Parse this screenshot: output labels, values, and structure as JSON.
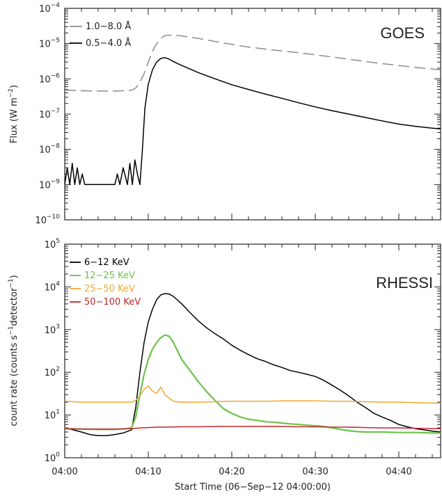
{
  "chart_data": [
    {
      "type": "line",
      "panel_label": "GOES",
      "ylabel": "Flux (W m",
      "ylabel_exp": "−2",
      "ylabel_end": ")",
      "yscale": "log",
      "ylim": [
        1e-10,
        0.0001
      ],
      "y_tick_labels": [
        {
          "base": "10",
          "exp": "−4",
          "value": 0.0001
        },
        {
          "base": "10",
          "exp": "−5",
          "value": 1e-05
        },
        {
          "base": "10",
          "exp": "−6",
          "value": 1e-06
        },
        {
          "base": "10",
          "exp": "−7",
          "value": 1e-07
        },
        {
          "base": "10",
          "exp": "−8",
          "value": 1e-08
        },
        {
          "base": "10",
          "exp": "−9",
          "value": 1e-09
        },
        {
          "base": "10",
          "exp": "−10",
          "value": 1e-10
        }
      ],
      "x_unit": "minutes after 04:00",
      "xlim": [
        0,
        45
      ],
      "legend_position": "top-left",
      "series": [
        {
          "name": "1.0−8.0 Å",
          "color": "#8c8c8c",
          "dash": true,
          "x": [
            0,
            2,
            4,
            6,
            8,
            8.5,
            9,
            9.5,
            10,
            10.5,
            11,
            11.5,
            12,
            13,
            14,
            16,
            18,
            20,
            22,
            24,
            26,
            28,
            30,
            32,
            34,
            36,
            38,
            40,
            42,
            44,
            45
          ],
          "y": [
            4.8e-07,
            4.6e-07,
            4.5e-07,
            4.5e-07,
            4.7e-07,
            5.5e-07,
            8e-07,
            1.4e-06,
            3e-06,
            6e-06,
            1e-05,
            1.4e-05,
            1.7e-05,
            1.75e-05,
            1.65e-05,
            1.4e-05,
            1.15e-05,
            9.5e-06,
            8e-06,
            7e-06,
            6.2e-06,
            5.5e-06,
            4.8e-06,
            4.2e-06,
            3.6e-06,
            3.1e-06,
            2.7e-06,
            2.4e-06,
            2.1e-06,
            1.9e-06,
            1.8e-06
          ]
        },
        {
          "name": "0.5−4.0 Å",
          "color": "#000000",
          "dash": false,
          "x": [
            0,
            0.3,
            0.6,
            0.9,
            1.2,
            1.5,
            1.8,
            2.1,
            2.4,
            2.7,
            3.0,
            3.5,
            4.0,
            5.0,
            6.0,
            6.3,
            6.6,
            7.0,
            7.5,
            7.8,
            8.1,
            8.4,
            8.7,
            9.0,
            9.3,
            9.6,
            10.0,
            10.5,
            11.0,
            11.5,
            12.0,
            12.5,
            13.0,
            14.0,
            15.0,
            16.0,
            18.0,
            20.0,
            22.0,
            24.0,
            26.0,
            28.0,
            30.0,
            32.0,
            34.0,
            36.0,
            38.0,
            40.0,
            42.0,
            44.0,
            45.0
          ],
          "y": [
            1e-09,
            3e-09,
            1e-09,
            4e-09,
            1e-09,
            3e-09,
            1e-09,
            2e-09,
            1e-09,
            1e-09,
            1e-09,
            1e-09,
            1e-09,
            1e-09,
            1e-09,
            2e-09,
            1e-09,
            3e-09,
            1e-09,
            4e-09,
            1e-09,
            5e-09,
            2e-09,
            1e-09,
            1e-08,
            1.5e-07,
            7e-07,
            1.8e-06,
            3e-06,
            3.8e-06,
            4e-06,
            3.6e-06,
            3.1e-06,
            2.4e-06,
            1.9e-06,
            1.5e-06,
            1e-06,
            6.8e-07,
            5e-07,
            3.7e-07,
            2.8e-07,
            2.1e-07,
            1.6e-07,
            1.25e-07,
            1e-07,
            8e-08,
            6.4e-08,
            5.2e-08,
            4.5e-08,
            4e-08,
            3.8e-08
          ]
        }
      ]
    },
    {
      "type": "line",
      "panel_label": "RHESSI",
      "ylabel": "count rate (counts s",
      "ylabel_exp": "−1",
      "ylabel_mid": "detector",
      "ylabel_exp2": "−1",
      "ylabel_end": ")",
      "yscale": "log",
      "ylim": [
        1,
        100000.0
      ],
      "y_tick_labels": [
        {
          "base": "10",
          "exp": "5",
          "value": 100000.0
        },
        {
          "base": "10",
          "exp": "4",
          "value": 10000.0
        },
        {
          "base": "10",
          "exp": "3",
          "value": 1000.0
        },
        {
          "base": "10",
          "exp": "2",
          "value": 100.0
        },
        {
          "base": "10",
          "exp": "1",
          "value": 10.0
        },
        {
          "base": "10",
          "exp": "0",
          "value": 1
        }
      ],
      "xlabel": "Start Time (06−Sep−12 04:00:00)",
      "x_unit": "minutes after 04:00",
      "xlim": [
        0,
        45
      ],
      "x_tick_labels": [
        {
          "label": "04:00",
          "value": 0
        },
        {
          "label": "04:10",
          "value": 10
        },
        {
          "label": "04:20",
          "value": 20
        },
        {
          "label": "04:30",
          "value": 30
        },
        {
          "label": "04:40",
          "value": 40
        }
      ],
      "legend_position": "top-left",
      "series": [
        {
          "name": "6−12 KeV",
          "color": "#000000",
          "x": [
            0,
            1,
            2,
            3,
            4,
            5,
            6,
            7,
            8,
            8.5,
            9,
            9.5,
            10,
            10.5,
            11,
            11.5,
            12,
            12.5,
            13,
            14,
            15,
            16,
            17,
            18,
            19,
            20,
            21,
            22,
            23,
            24,
            25,
            26,
            27,
            28,
            29,
            30,
            31,
            32,
            33,
            34,
            35,
            36,
            37,
            38,
            39,
            40,
            41,
            42,
            43,
            44,
            45
          ],
          "y": [
            5,
            4.5,
            4,
            3.5,
            3.3,
            3.3,
            3.5,
            3.8,
            4.5,
            15,
            100,
            500,
            1500,
            3000,
            5000,
            6500,
            7000,
            6800,
            6000,
            4000,
            2500,
            1600,
            1100,
            800,
            600,
            430,
            330,
            260,
            210,
            180,
            150,
            130,
            110,
            100,
            90,
            80,
            65,
            50,
            38,
            28,
            20,
            15,
            11,
            9,
            7.5,
            6,
            5.3,
            4.8,
            4.5,
            4.2,
            4
          ]
        },
        {
          "name": "12−25 KeV",
          "color": "#6cc24a",
          "x": [
            0,
            2,
            4,
            6,
            7,
            8,
            8.5,
            9,
            9.5,
            10,
            10.5,
            11,
            11.5,
            12,
            12.5,
            13,
            13.5,
            14,
            15,
            16,
            17,
            18,
            19,
            20,
            21,
            22,
            23,
            24,
            25,
            26,
            27,
            28,
            29,
            30,
            31,
            32,
            33,
            34,
            35,
            36,
            38,
            40,
            42,
            44,
            45
          ],
          "y": [
            4.8,
            4.7,
            4.6,
            4.6,
            4.7,
            5,
            9,
            30,
            90,
            200,
            350,
            500,
            650,
            750,
            700,
            500,
            320,
            200,
            110,
            60,
            35,
            22,
            14,
            11,
            9,
            8,
            7.5,
            7,
            6.8,
            6.5,
            6.2,
            6,
            5.8,
            5.6,
            5.4,
            5,
            4.6,
            4.3,
            4.1,
            4,
            4,
            3.9,
            3.9,
            3.8,
            3.8
          ]
        },
        {
          "name": "25−50 KeV",
          "color": "#f0a830",
          "x": [
            0,
            2,
            4,
            6,
            7,
            8,
            8.5,
            9,
            9.5,
            10,
            10.5,
            11,
            11.5,
            12,
            12.5,
            13,
            14,
            15,
            16,
            18,
            20,
            22,
            24,
            26,
            28,
            30,
            32,
            34,
            36,
            38,
            40,
            42,
            44,
            45
          ],
          "y": [
            21,
            20,
            20,
            20,
            20,
            20,
            22,
            28,
            40,
            48,
            36,
            32,
            45,
            30,
            25,
            21,
            20,
            20,
            20,
            20.5,
            21,
            21,
            21,
            21.5,
            21.5,
            21.5,
            21,
            21,
            20.5,
            20,
            20,
            19.5,
            19,
            19
          ]
        },
        {
          "name": "50−100 KeV",
          "color": "#c0282d",
          "x": [
            0,
            2,
            4,
            6,
            8,
            9,
            10,
            11,
            12,
            14,
            16,
            18,
            20,
            22,
            24,
            26,
            28,
            30,
            32,
            34,
            36,
            38,
            40,
            42,
            44,
            45
          ],
          "y": [
            4.8,
            4.7,
            4.7,
            4.7,
            4.8,
            5,
            5.1,
            5.2,
            5.2,
            5.3,
            5.3,
            5.4,
            5.4,
            5.4,
            5.4,
            5.4,
            5.3,
            5.3,
            5.2,
            5.2,
            5.1,
            5,
            5,
            4.9,
            4.8,
            4.8
          ]
        }
      ]
    }
  ]
}
